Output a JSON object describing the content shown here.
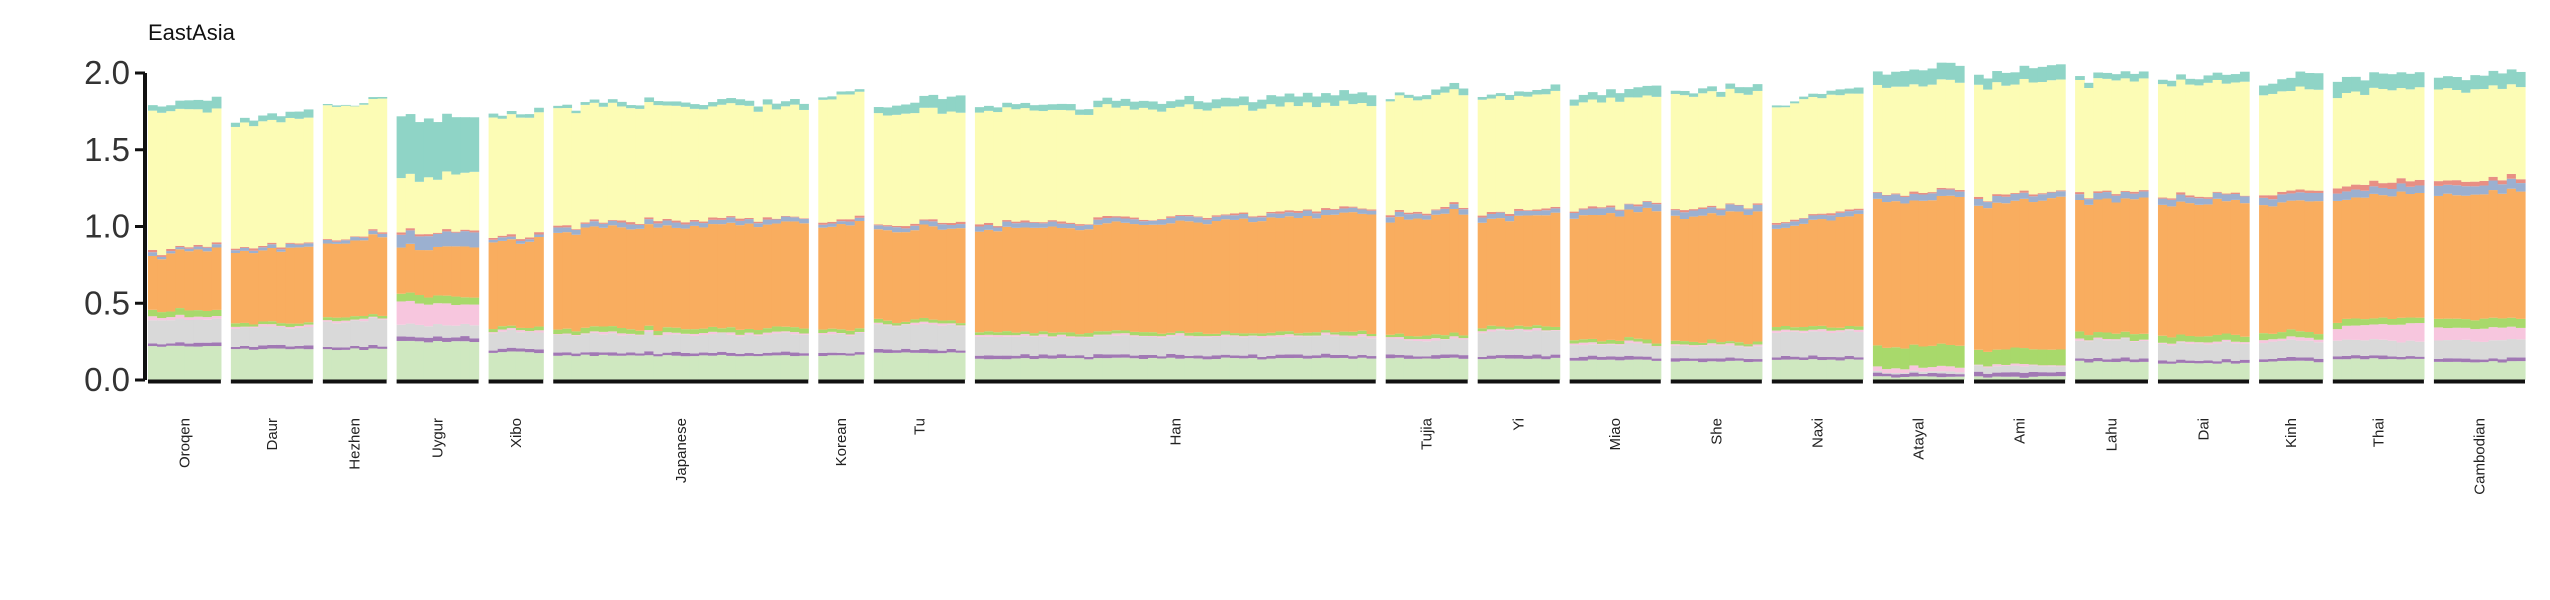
{
  "chart_data": {
    "type": "bar",
    "stacked": true,
    "title": "EastAsia",
    "xlabel": "",
    "ylabel": "",
    "ylim": [
      0,
      2.0
    ],
    "yticks": [
      "0.0",
      "0.5",
      "1.0",
      "1.5",
      "2.0"
    ],
    "ytick_values": [
      0,
      0.5,
      1.0,
      1.5,
      2.0
    ],
    "legend": "none",
    "grid": false,
    "component_colors": [
      "#cfe8c0",
      "#a178b4",
      "#d9d9d9",
      "#f7c6de",
      "#a8d96b",
      "#f9ad5f",
      "#9bb0d0",
      "#e88f84",
      "#fcfcb5",
      "#8fd4c6"
    ],
    "groups": [
      {
        "name": "Oroqen",
        "n": 8,
        "bands": [
          0.22,
          0.02,
          0.15,
          0.02,
          0.04,
          0.35,
          0.02,
          0.01,
          0.92,
          0.03
        ],
        "trend": [
          0.0,
          0.002,
          0.0,
          0.0,
          0.0,
          0.06,
          0.0,
          0.0,
          -0.04,
          0.05
        ]
      },
      {
        "name": "Daur",
        "n": 9,
        "bands": [
          0.2,
          0.02,
          0.12,
          0.01,
          0.02,
          0.46,
          0.02,
          0.01,
          0.8,
          0.03
        ],
        "trend": [
          0.0,
          0.0,
          0.0,
          0.0,
          0.0,
          0.03,
          0.0,
          0.0,
          0.01,
          0.02
        ]
      },
      {
        "name": "Hezhen",
        "n": 7,
        "bands": [
          0.2,
          0.02,
          0.16,
          0.01,
          0.02,
          0.47,
          0.02,
          0.01,
          0.86,
          0.01
        ],
        "trend": [
          0.0,
          0.0,
          0.02,
          0.0,
          0.0,
          0.05,
          0.0,
          0.0,
          0.0,
          0.0
        ]
      },
      {
        "name": "Uygur",
        "n": 9,
        "bands": [
          0.25,
          0.03,
          0.08,
          0.15,
          0.05,
          0.3,
          0.08,
          0.01,
          0.35,
          0.4
        ],
        "trend": [
          0.0,
          0.0,
          0.0,
          -0.02,
          0.0,
          0.03,
          0.02,
          0.0,
          0.02,
          -0.04
        ]
      },
      {
        "name": "Xibo",
        "n": 6,
        "bands": [
          0.18,
          0.02,
          0.11,
          0.01,
          0.02,
          0.55,
          0.02,
          0.01,
          0.77,
          0.02
        ],
        "trend": [
          0.0,
          0.0,
          0.0,
          0.0,
          0.0,
          0.02,
          0.0,
          0.0,
          0.02,
          0.01
        ]
      },
      {
        "name": "Japanese",
        "n": 28,
        "bands": [
          0.16,
          0.02,
          0.12,
          0.01,
          0.03,
          0.64,
          0.03,
          0.01,
          0.76,
          0.02
        ],
        "trend": [
          0.0,
          0.0,
          0.0,
          0.0,
          0.0,
          0.05,
          0.0,
          0.0,
          -0.04,
          0.02
        ]
      },
      {
        "name": "Korean",
        "n": 5,
        "bands": [
          0.16,
          0.02,
          0.12,
          0.01,
          0.02,
          0.66,
          0.02,
          0.01,
          0.8,
          0.02
        ],
        "trend": [
          0.0,
          0.0,
          0.0,
          0.0,
          0.0,
          0.03,
          0.0,
          0.0,
          0.0,
          0.0
        ]
      },
      {
        "name": "Tu",
        "n": 10,
        "bands": [
          0.18,
          0.02,
          0.16,
          0.01,
          0.02,
          0.58,
          0.03,
          0.01,
          0.72,
          0.04
        ],
        "trend": [
          0.0,
          0.0,
          0.0,
          0.0,
          0.0,
          0.03,
          0.0,
          0.0,
          0.0,
          0.07
        ]
      },
      {
        "name": "Han",
        "n": 44,
        "bands": [
          0.14,
          0.02,
          0.12,
          0.01,
          0.02,
          0.66,
          0.03,
          0.01,
          0.74,
          0.03
        ],
        "trend": [
          0.0,
          0.0,
          0.0,
          0.0,
          0.0,
          0.11,
          0.0,
          0.0,
          -0.06,
          0.04
        ]
      },
      {
        "name": "Tujia",
        "n": 9,
        "bands": [
          0.14,
          0.02,
          0.1,
          0.01,
          0.02,
          0.74,
          0.03,
          0.01,
          0.74,
          0.02
        ],
        "trend": [
          0.0,
          0.0,
          0.0,
          0.0,
          0.0,
          0.06,
          0.0,
          0.0,
          0.0,
          0.02
        ]
      },
      {
        "name": "Yi",
        "n": 9,
        "bands": [
          0.14,
          0.02,
          0.16,
          0.01,
          0.02,
          0.68,
          0.03,
          0.01,
          0.75,
          0.02
        ],
        "trend": [
          0.0,
          0.0,
          0.0,
          0.0,
          0.0,
          0.06,
          0.0,
          0.0,
          0.0,
          0.02
        ]
      },
      {
        "name": "Miao",
        "n": 10,
        "bands": [
          0.13,
          0.02,
          0.08,
          0.01,
          0.02,
          0.79,
          0.04,
          0.01,
          0.69,
          0.04
        ],
        "trend": [
          0.0,
          0.0,
          0.0,
          0.0,
          0.0,
          0.06,
          0.0,
          0.0,
          0.0,
          0.03
        ]
      },
      {
        "name": "She",
        "n": 10,
        "bands": [
          0.12,
          0.02,
          0.08,
          0.01,
          0.02,
          0.8,
          0.04,
          0.01,
          0.74,
          0.02
        ],
        "trend": [
          0.0,
          0.0,
          0.0,
          0.0,
          0.0,
          0.05,
          0.0,
          0.0,
          0.0,
          0.03
        ]
      },
      {
        "name": "Naxi",
        "n": 10,
        "bands": [
          0.13,
          0.02,
          0.16,
          0.01,
          0.02,
          0.64,
          0.03,
          0.01,
          0.76,
          0.01
        ],
        "trend": [
          0.0,
          0.0,
          0.0,
          0.0,
          0.0,
          0.1,
          0.0,
          0.0,
          0.0,
          0.03
        ]
      },
      {
        "name": "Atayal",
        "n": 10,
        "bands": [
          0.02,
          0.02,
          0.01,
          0.03,
          0.14,
          0.94,
          0.04,
          0.01,
          0.7,
          0.09
        ],
        "trend": [
          0.0,
          0.0,
          0.0,
          0.0,
          0.0,
          0.03,
          0.0,
          0.0,
          0.0,
          0.02
        ]
      },
      {
        "name": "Ami",
        "n": 10,
        "bands": [
          0.02,
          0.03,
          0.04,
          0.01,
          0.1,
          0.94,
          0.04,
          0.01,
          0.72,
          0.07
        ],
        "trend": [
          0.0,
          0.0,
          0.0,
          0.0,
          0.0,
          0.05,
          0.0,
          0.0,
          0.0,
          0.03
        ]
      },
      {
        "name": "Lahu",
        "n": 8,
        "bands": [
          0.12,
          0.02,
          0.12,
          0.01,
          0.04,
          0.85,
          0.04,
          0.01,
          0.73,
          0.03
        ],
        "trend": [
          0.0,
          0.0,
          0.0,
          0.0,
          0.0,
          0.03,
          0.0,
          0.0,
          0.0,
          0.02
        ]
      },
      {
        "name": "Dai",
        "n": 10,
        "bands": [
          0.11,
          0.02,
          0.11,
          0.01,
          0.04,
          0.86,
          0.04,
          0.01,
          0.73,
          0.03
        ],
        "trend": [
          0.0,
          0.0,
          0.0,
          0.0,
          0.0,
          0.02,
          0.0,
          0.0,
          0.0,
          0.03
        ]
      },
      {
        "name": "Kinh",
        "n": 7,
        "bands": [
          0.12,
          0.02,
          0.11,
          0.02,
          0.04,
          0.82,
          0.05,
          0.02,
          0.66,
          0.06
        ],
        "trend": [
          0.0,
          0.0,
          0.0,
          0.0,
          0.0,
          0.04,
          0.0,
          0.0,
          0.0,
          0.05
        ]
      },
      {
        "name": "Thai",
        "n": 10,
        "bands": [
          0.14,
          0.02,
          0.1,
          0.08,
          0.04,
          0.78,
          0.05,
          0.03,
          0.6,
          0.1
        ],
        "trend": [
          0.0,
          0.0,
          0.0,
          0.04,
          0.0,
          0.04,
          0.0,
          0.01,
          0.0,
          0.0
        ]
      },
      {
        "name": "Cambodian",
        "n": 10,
        "bands": [
          0.12,
          0.02,
          0.12,
          0.08,
          0.06,
          0.8,
          0.06,
          0.03,
          0.59,
          0.08
        ],
        "trend": [
          0.0,
          0.0,
          0.0,
          0.0,
          0.0,
          0.03,
          0.0,
          0.0,
          0.0,
          0.02
        ]
      }
    ]
  }
}
